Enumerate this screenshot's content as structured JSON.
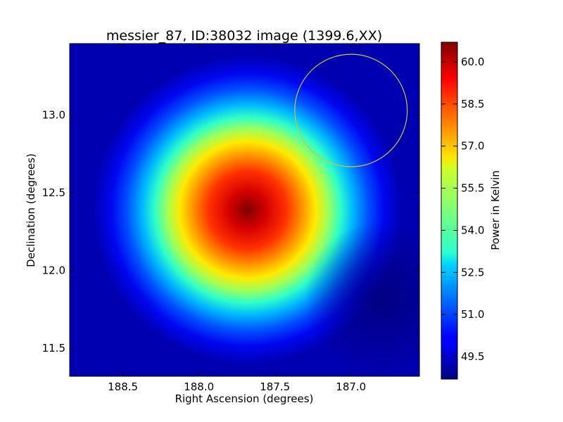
{
  "chart_data": {
    "type": "heatmap",
    "title": "messier_87, ID:38032 image (1399.6,XX)",
    "xlabel": "Right Ascension (degrees)",
    "ylabel": "Declination (degrees)",
    "xlim": [
      188.85,
      186.55
    ],
    "ylim": [
      11.32,
      13.46
    ],
    "x_reversed": true,
    "x_ticks": [
      188.5,
      188.0,
      187.5,
      187.0
    ],
    "x_tick_labels": [
      "188.5",
      "188.0",
      "187.5",
      "187.0"
    ],
    "y_ticks": [
      11.5,
      12.0,
      12.5,
      13.0
    ],
    "y_tick_labels": [
      "11.5",
      "12.0",
      "12.5",
      "13.0"
    ],
    "colormap": "jet",
    "colorbar": {
      "label": "Power in Kelvin",
      "min": 48.7,
      "max": 60.7,
      "ticks": [
        49.5,
        51.0,
        52.5,
        54.0,
        55.5,
        57.0,
        58.5,
        60.0
      ],
      "tick_labels": [
        "49.5",
        "51.0",
        "52.5",
        "54.0",
        "55.5",
        "57.0",
        "58.5",
        "60.0"
      ]
    },
    "peak": {
      "ra": 187.68,
      "dec": 12.39,
      "value": 60.7
    },
    "background_value": 48.7,
    "circle": {
      "ra": 187.0,
      "dec": 13.03,
      "radius": 0.37,
      "color": "#c8c832"
    },
    "grid": false
  }
}
